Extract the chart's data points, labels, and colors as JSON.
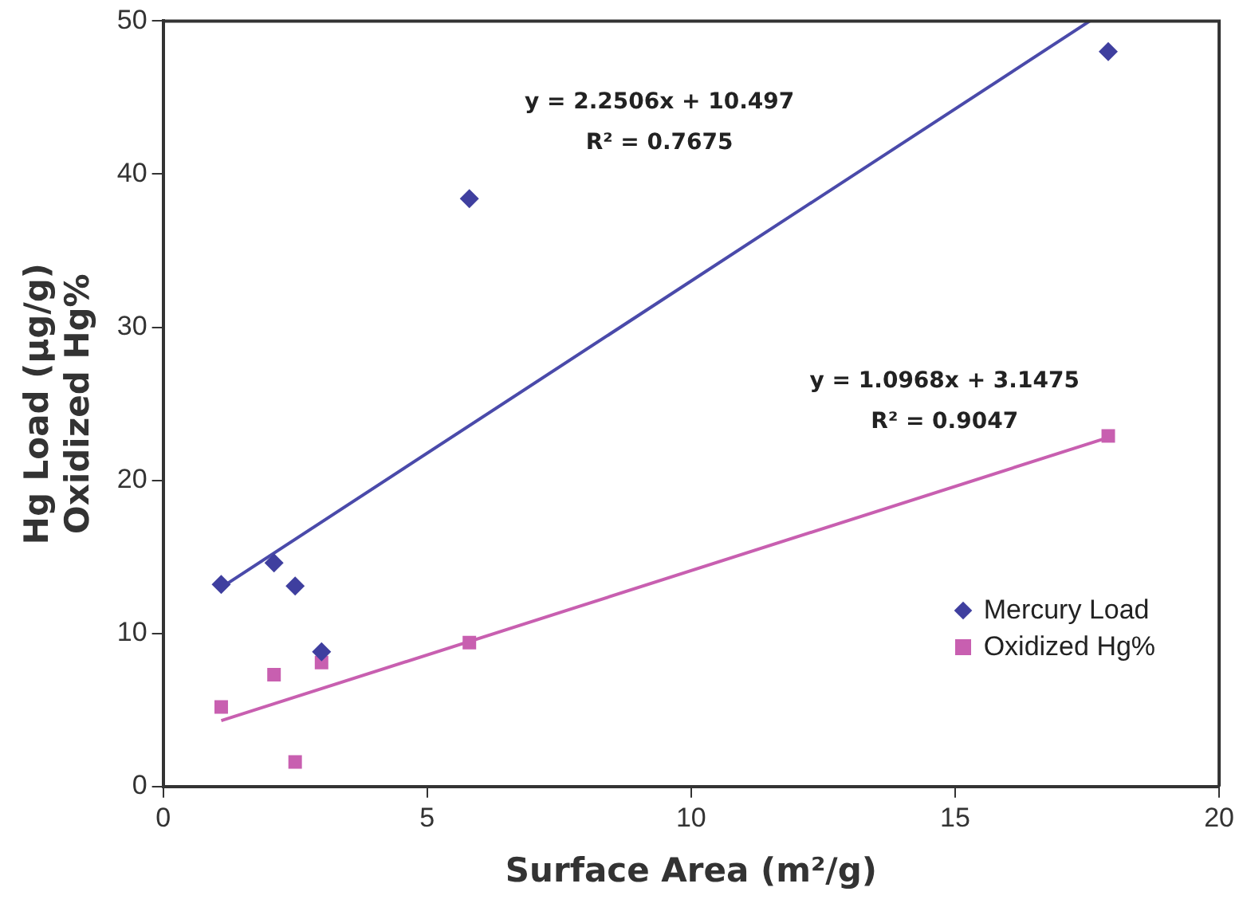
{
  "chart_data": {
    "type": "scatter",
    "xlabel": "Surface Area (m²/g)",
    "ylabel": "Hg Load (μg/g)\nOxidized Hg%",
    "xlim": [
      0,
      20
    ],
    "xticks": [
      0,
      5,
      10,
      15,
      20
    ],
    "ylim": [
      0,
      50
    ],
    "yticks": [
      0,
      10,
      20,
      30,
      40,
      50
    ],
    "grid": false,
    "legend": "right",
    "series": [
      {
        "name": "Mercury Load",
        "color": "#3f3f9f",
        "marker": "diamond",
        "x": [
          1.1,
          2.1,
          2.5,
          3.0,
          5.8,
          17.9
        ],
        "values": [
          13.2,
          14.6,
          13.1,
          8.8,
          38.4,
          48.0
        ]
      },
      {
        "name": "Oxidized Hg%",
        "color": "#c85fb0",
        "marker": "square",
        "x": [
          1.1,
          2.1,
          2.5,
          3.0,
          5.8,
          17.9
        ],
        "values": [
          5.2,
          7.3,
          1.6,
          8.1,
          9.4,
          22.9
        ]
      },
      {
        "type": "line",
        "color": "#4a4aaa",
        "marker": "none",
        "x": [
          1.1,
          17.55
        ],
        "values": [
          13.0,
          50
        ]
      },
      {
        "type": "line",
        "color": "#c85fb0",
        "marker": "none",
        "x": [
          1.1,
          17.9
        ],
        "values": [
          4.3,
          22.8
        ]
      }
    ],
    "annotations": [
      "y = 2.2506x + 10.497",
      "R² = 0.7675",
      "y = 1.0968x + 3.1475",
      "R² = 0.9047"
    ]
  }
}
